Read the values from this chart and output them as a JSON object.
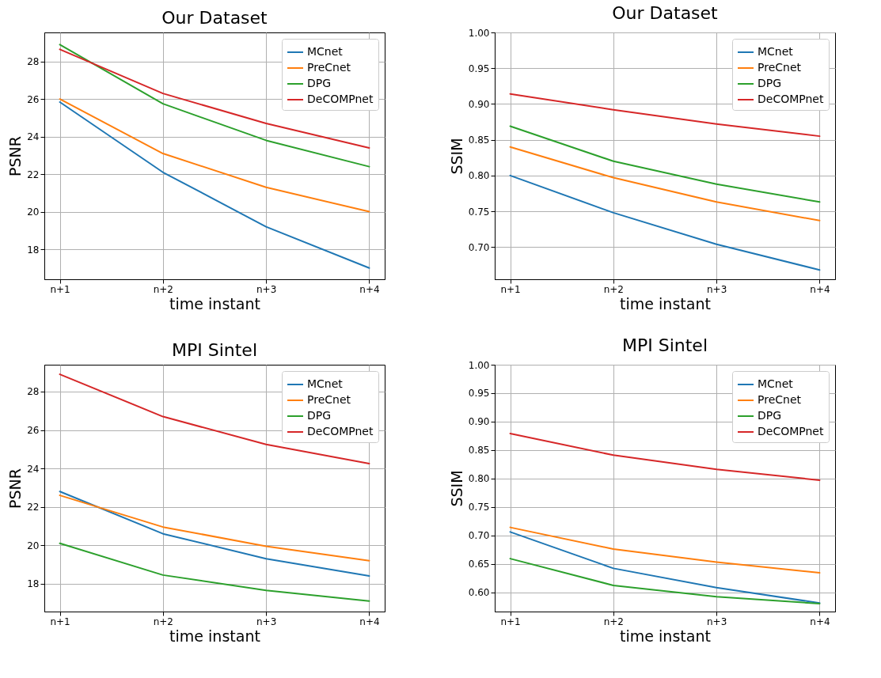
{
  "chart_data": [
    {
      "type": "line",
      "title": "Our Dataset",
      "xlabel": "time instant",
      "ylabel": "PSNR",
      "categories": [
        "n+1",
        "n+2",
        "n+3",
        "n+4"
      ],
      "ylim": [
        16.4,
        29.55
      ],
      "yticks": [
        18,
        20,
        22,
        24,
        26,
        28
      ],
      "grid": true,
      "legend": "top right",
      "series": [
        {
          "name": "MCnet",
          "color": "#1f77b4",
          "values": [
            25.84,
            22.1,
            19.2,
            17.0
          ]
        },
        {
          "name": "PreCnet",
          "color": "#ff7f0e",
          "values": [
            26.0,
            23.1,
            21.3,
            20.0
          ]
        },
        {
          "name": "DPG",
          "color": "#2ca02c",
          "values": [
            28.9,
            25.75,
            23.8,
            22.4
          ]
        },
        {
          "name": "DeCOMPnet",
          "color": "#d62728",
          "values": [
            28.65,
            26.3,
            24.7,
            23.4
          ]
        }
      ]
    },
    {
      "type": "line",
      "title": "Our Dataset",
      "xlabel": "time instant",
      "ylabel": "SSIM",
      "categories": [
        "n+1",
        "n+2",
        "n+3",
        "n+4"
      ],
      "ylim": [
        0.655,
        1.0
      ],
      "yticks": [
        {
          "value": 0.7,
          "label": "0.70"
        },
        {
          "value": 0.75,
          "label": "0.75"
        },
        {
          "value": 0.8,
          "label": "0.80"
        },
        {
          "value": 0.85,
          "label": "0.85"
        },
        {
          "value": 0.9,
          "label": "0.90"
        },
        {
          "value": 0.95,
          "label": "0.95"
        },
        {
          "value": 1.0,
          "label": "1.00"
        }
      ],
      "grid": true,
      "legend": "top right",
      "series": [
        {
          "name": "MCnet",
          "color": "#1f77b4",
          "values": [
            0.8,
            0.748,
            0.704,
            0.668
          ]
        },
        {
          "name": "PreCnet",
          "color": "#ff7f0e",
          "values": [
            0.84,
            0.797,
            0.763,
            0.737
          ]
        },
        {
          "name": "DPG",
          "color": "#2ca02c",
          "values": [
            0.869,
            0.82,
            0.788,
            0.763
          ]
        },
        {
          "name": "DeCOMPnet",
          "color": "#d62728",
          "values": [
            0.914,
            0.892,
            0.872,
            0.855
          ]
        }
      ]
    },
    {
      "type": "line",
      "title": "MPI Sintel",
      "xlabel": "time instant",
      "ylabel": "PSNR",
      "categories": [
        "n+1",
        "n+2",
        "n+3",
        "n+4"
      ],
      "ylim": [
        16.55,
        29.4
      ],
      "yticks": [
        18,
        20,
        22,
        24,
        26,
        28
      ],
      "grid": true,
      "legend": "top right",
      "series": [
        {
          "name": "MCnet",
          "color": "#1f77b4",
          "values": [
            22.8,
            20.6,
            19.3,
            18.4
          ]
        },
        {
          "name": "PreCnet",
          "color": "#ff7f0e",
          "values": [
            22.6,
            20.95,
            19.95,
            19.2
          ]
        },
        {
          "name": "DPG",
          "color": "#2ca02c",
          "values": [
            20.1,
            18.45,
            17.65,
            17.1
          ]
        },
        {
          "name": "DeCOMPnet",
          "color": "#d62728",
          "values": [
            28.9,
            26.7,
            25.25,
            24.25
          ]
        }
      ]
    },
    {
      "type": "line",
      "title": "MPI Sintel",
      "xlabel": "time instant",
      "ylabel": "SSIM",
      "categories": [
        "n+1",
        "n+2",
        "n+3",
        "n+4"
      ],
      "ylim": [
        0.566,
        1.0
      ],
      "yticks": [
        {
          "value": 0.6,
          "label": "0.60"
        },
        {
          "value": 0.65,
          "label": "0.65"
        },
        {
          "value": 0.7,
          "label": "0.70"
        },
        {
          "value": 0.75,
          "label": "0.75"
        },
        {
          "value": 0.8,
          "label": "0.80"
        },
        {
          "value": 0.85,
          "label": "0.85"
        },
        {
          "value": 0.9,
          "label": "0.90"
        },
        {
          "value": 0.95,
          "label": "0.95"
        },
        {
          "value": 1.0,
          "label": "1.00"
        }
      ],
      "grid": true,
      "legend": "top right",
      "series": [
        {
          "name": "MCnet",
          "color": "#1f77b4",
          "values": [
            0.706,
            0.642,
            0.608,
            0.581
          ]
        },
        {
          "name": "PreCnet",
          "color": "#ff7f0e",
          "values": [
            0.714,
            0.676,
            0.653,
            0.634
          ]
        },
        {
          "name": "DPG",
          "color": "#2ca02c",
          "values": [
            0.659,
            0.612,
            0.592,
            0.58
          ]
        },
        {
          "name": "DeCOMPnet",
          "color": "#d62728",
          "values": [
            0.879,
            0.841,
            0.816,
            0.797
          ]
        }
      ]
    }
  ]
}
